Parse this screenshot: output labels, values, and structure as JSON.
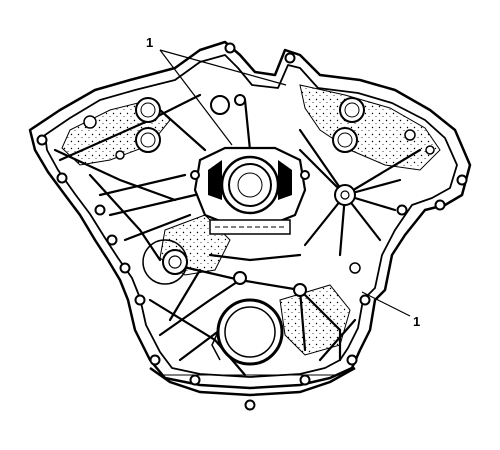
{
  "figure": {
    "callouts": [
      {
        "id": "top",
        "label": "1"
      },
      {
        "id": "right",
        "label": "1"
      }
    ]
  }
}
